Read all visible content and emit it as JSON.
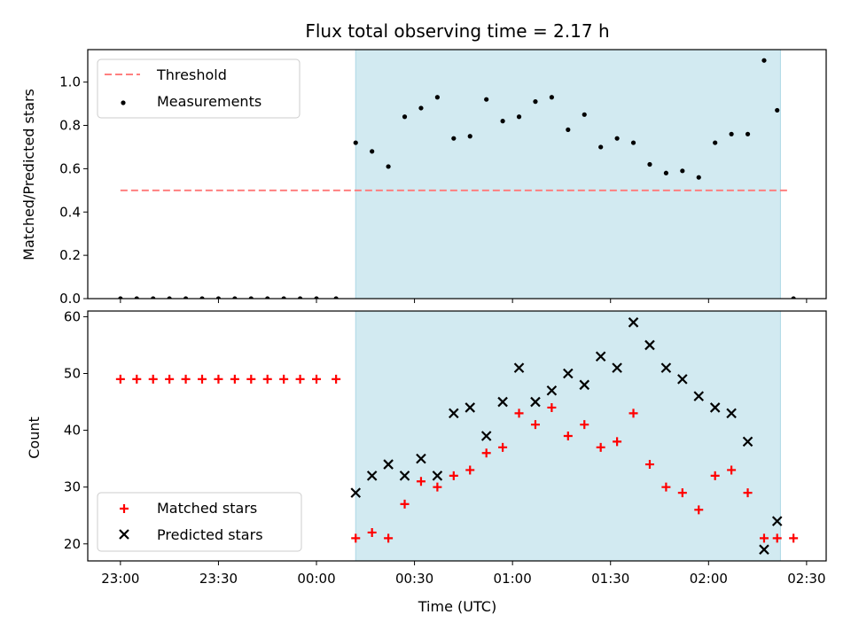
{
  "chart_data": [
    {
      "type": "scatter",
      "title": "Flux total observing time = 2.17 h",
      "ylabel": "Matched/Predicted stars",
      "ylim": [
        0,
        1.15
      ],
      "yticks": [
        0.0,
        0.2,
        0.4,
        0.6,
        0.8,
        1.0
      ],
      "ytick_labels": [
        "0.0",
        "0.2",
        "0.4",
        "0.6",
        "0.8",
        "1.0"
      ],
      "grid": false,
      "legend_position": "top-left",
      "threshold": {
        "name": "Threshold",
        "value": 0.5,
        "x_start": "23:00",
        "x_end": "02:25",
        "color": "#ff7f7f"
      },
      "shaded_region": {
        "x_start": "00:12",
        "x_end": "02:22",
        "color": "#add8e6"
      },
      "series": [
        {
          "name": "Measurements",
          "color": "#000000",
          "marker": "dot",
          "points": [
            [
              "23:00",
              0.0
            ],
            [
              "23:05",
              0.0
            ],
            [
              "23:10",
              0.0
            ],
            [
              "23:15",
              0.0
            ],
            [
              "23:20",
              0.0
            ],
            [
              "23:25",
              0.0
            ],
            [
              "23:30",
              0.0
            ],
            [
              "23:35",
              0.0
            ],
            [
              "23:40",
              0.0
            ],
            [
              "23:45",
              0.0
            ],
            [
              "23:50",
              0.0
            ],
            [
              "23:55",
              0.0
            ],
            [
              "00:00",
              0.0
            ],
            [
              "00:06",
              0.0
            ],
            [
              "00:12",
              0.72
            ],
            [
              "00:17",
              0.68
            ],
            [
              "00:22",
              0.61
            ],
            [
              "00:27",
              0.84
            ],
            [
              "00:32",
              0.88
            ],
            [
              "00:37",
              0.93
            ],
            [
              "00:42",
              0.74
            ],
            [
              "00:47",
              0.75
            ],
            [
              "00:52",
              0.92
            ],
            [
              "00:57",
              0.82
            ],
            [
              "01:02",
              0.84
            ],
            [
              "01:07",
              0.91
            ],
            [
              "01:12",
              0.93
            ],
            [
              "01:17",
              0.78
            ],
            [
              "01:22",
              0.85
            ],
            [
              "01:27",
              0.7
            ],
            [
              "01:32",
              0.74
            ],
            [
              "01:37",
              0.72
            ],
            [
              "01:42",
              0.62
            ],
            [
              "01:47",
              0.58
            ],
            [
              "01:52",
              0.59
            ],
            [
              "01:57",
              0.56
            ],
            [
              "02:02",
              0.72
            ],
            [
              "02:07",
              0.76
            ],
            [
              "02:12",
              0.76
            ],
            [
              "02:17",
              1.1
            ],
            [
              "02:21",
              0.87
            ],
            [
              "02:26",
              0.0
            ]
          ]
        }
      ]
    },
    {
      "type": "scatter",
      "xlabel": "Time (UTC)",
      "ylabel": "Count",
      "ylim": [
        17,
        61
      ],
      "yticks": [
        20,
        30,
        40,
        50,
        60
      ],
      "ytick_labels": [
        "20",
        "30",
        "40",
        "50",
        "60"
      ],
      "xlim": [
        "22:50",
        "02:36"
      ],
      "xticks": [
        "23:00",
        "23:30",
        "00:00",
        "00:30",
        "01:00",
        "01:30",
        "02:00",
        "02:30"
      ],
      "xtick_labels": [
        "23:00",
        "23:30",
        "00:00",
        "00:30",
        "01:00",
        "01:30",
        "02:00",
        "02:30"
      ],
      "grid": false,
      "legend_position": "bottom-left",
      "shaded_region": {
        "x_start": "00:12",
        "x_end": "02:22",
        "color": "#add8e6"
      },
      "series": [
        {
          "name": "Matched stars",
          "color": "#ff0000",
          "marker": "plus",
          "points": [
            [
              "23:00",
              49
            ],
            [
              "23:05",
              49
            ],
            [
              "23:10",
              49
            ],
            [
              "23:15",
              49
            ],
            [
              "23:20",
              49
            ],
            [
              "23:25",
              49
            ],
            [
              "23:30",
              49
            ],
            [
              "23:35",
              49
            ],
            [
              "23:40",
              49
            ],
            [
              "23:45",
              49
            ],
            [
              "23:50",
              49
            ],
            [
              "23:55",
              49
            ],
            [
              "00:00",
              49
            ],
            [
              "00:06",
              49
            ],
            [
              "00:12",
              21
            ],
            [
              "00:17",
              22
            ],
            [
              "00:22",
              21
            ],
            [
              "00:27",
              27
            ],
            [
              "00:32",
              31
            ],
            [
              "00:37",
              30
            ],
            [
              "00:42",
              32
            ],
            [
              "00:47",
              33
            ],
            [
              "00:52",
              36
            ],
            [
              "00:57",
              37
            ],
            [
              "01:02",
              43
            ],
            [
              "01:07",
              41
            ],
            [
              "01:12",
              44
            ],
            [
              "01:17",
              39
            ],
            [
              "01:22",
              41
            ],
            [
              "01:27",
              37
            ],
            [
              "01:32",
              38
            ],
            [
              "01:37",
              43
            ],
            [
              "01:42",
              34
            ],
            [
              "01:47",
              30
            ],
            [
              "01:52",
              29
            ],
            [
              "01:57",
              26
            ],
            [
              "02:02",
              32
            ],
            [
              "02:07",
              33
            ],
            [
              "02:12",
              29
            ],
            [
              "02:17",
              21
            ],
            [
              "02:21",
              21
            ],
            [
              "02:26",
              21
            ]
          ]
        },
        {
          "name": "Predicted stars",
          "color": "#000000",
          "marker": "x",
          "points": [
            [
              "00:12",
              29
            ],
            [
              "00:17",
              32
            ],
            [
              "00:22",
              34
            ],
            [
              "00:27",
              32
            ],
            [
              "00:32",
              35
            ],
            [
              "00:37",
              32
            ],
            [
              "00:42",
              43
            ],
            [
              "00:47",
              44
            ],
            [
              "00:52",
              39
            ],
            [
              "00:57",
              45
            ],
            [
              "01:02",
              51
            ],
            [
              "01:07",
              45
            ],
            [
              "01:12",
              47
            ],
            [
              "01:17",
              50
            ],
            [
              "01:22",
              48
            ],
            [
              "01:27",
              53
            ],
            [
              "01:32",
              51
            ],
            [
              "01:37",
              59
            ],
            [
              "01:42",
              55
            ],
            [
              "01:47",
              51
            ],
            [
              "01:52",
              49
            ],
            [
              "01:57",
              46
            ],
            [
              "02:02",
              44
            ],
            [
              "02:07",
              43
            ],
            [
              "02:12",
              38
            ],
            [
              "02:17",
              19
            ],
            [
              "02:21",
              24
            ]
          ]
        }
      ]
    }
  ]
}
